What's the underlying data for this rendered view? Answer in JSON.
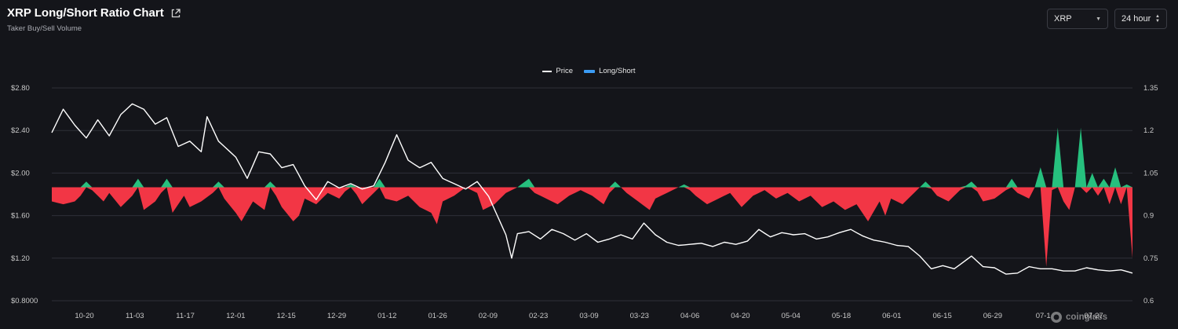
{
  "header": {
    "title": "XRP Long/Short Ratio Chart",
    "subtitle": "Taker Buy/Sell Volume",
    "coin_select": "XRP",
    "range_select": "24 hour"
  },
  "icons": {
    "external_link": "external-link-icon",
    "coin_dropdown": "chevron-down-icon",
    "range_stepper": "up-down-chevron-icon"
  },
  "watermark": "coinglass",
  "colors": {
    "background": "#14151a",
    "price_line": "#ffffff",
    "long_fill": "#26c07e",
    "short_fill": "#f23645",
    "legend_ratio": "#3b9cf4",
    "grid": "#2e3038"
  },
  "chart_data": {
    "type": "line",
    "legend": [
      {
        "name": "Price"
      },
      {
        "name": "Long/Short"
      }
    ],
    "x_tick_labels": [
      "10-20",
      "11-03",
      "11-17",
      "12-01",
      "12-15",
      "12-29",
      "01-12",
      "01-26",
      "02-09",
      "02-23",
      "03-09",
      "03-23",
      "04-06",
      "04-20",
      "05-04",
      "05-18",
      "06-01",
      "06-15",
      "06-29",
      "07-13",
      "07-27"
    ],
    "x_tick_label_visible": [
      "10-20",
      "11-03",
      "11-17",
      "12-01",
      "12-15",
      "12-29",
      "01-12",
      "01-26",
      "02-09",
      "02-23",
      "03-09",
      "03-23",
      "04-06",
      "04-20",
      "05-04",
      "05-18",
      "06-01",
      "06-15",
      "06-29",
      "07-1",
      "07-27"
    ],
    "y_left": {
      "ylim": [
        0.8,
        2.8
      ],
      "ticks": [
        "$0.8000",
        "$1.20",
        "$1.60",
        "$2.00",
        "$2.40",
        "$2.80"
      ]
    },
    "y_right": {
      "ylim": [
        0.6,
        1.35
      ],
      "ticks": [
        "0.6",
        "0.75",
        "0.9",
        "1.05",
        "1.2",
        "1.35"
      ]
    },
    "ratio_baseline": 1.0,
    "price_anchors": [
      [
        0,
        2.38
      ],
      [
        2,
        2.6
      ],
      [
        4,
        2.45
      ],
      [
        6,
        2.33
      ],
      [
        8,
        2.5
      ],
      [
        10,
        2.35
      ],
      [
        12,
        2.55
      ],
      [
        14,
        2.65
      ],
      [
        16,
        2.6
      ],
      [
        18,
        2.46
      ],
      [
        20,
        2.52
      ],
      [
        22,
        2.25
      ],
      [
        24,
        2.3
      ],
      [
        26,
        2.2
      ],
      [
        27,
        2.53
      ],
      [
        29,
        2.3
      ],
      [
        32,
        2.15
      ],
      [
        34,
        1.95
      ],
      [
        36,
        2.2
      ],
      [
        38,
        2.18
      ],
      [
        40,
        2.05
      ],
      [
        42,
        2.08
      ],
      [
        44,
        1.88
      ],
      [
        46,
        1.75
      ],
      [
        48,
        1.92
      ],
      [
        50,
        1.86
      ],
      [
        52,
        1.9
      ],
      [
        54,
        1.85
      ],
      [
        56,
        1.88
      ],
      [
        58,
        2.1
      ],
      [
        60,
        2.36
      ],
      [
        62,
        2.12
      ],
      [
        64,
        2.05
      ],
      [
        66,
        2.1
      ],
      [
        68,
        1.95
      ],
      [
        70,
        1.9
      ],
      [
        72,
        1.85
      ],
      [
        74,
        1.92
      ],
      [
        76,
        1.78
      ],
      [
        77,
        1.66
      ],
      [
        79,
        1.42
      ],
      [
        80,
        1.2
      ],
      [
        81,
        1.43
      ],
      [
        83,
        1.45
      ],
      [
        85,
        1.38
      ],
      [
        87,
        1.47
      ],
      [
        89,
        1.43
      ],
      [
        91,
        1.37
      ],
      [
        93,
        1.43
      ],
      [
        95,
        1.35
      ],
      [
        97,
        1.38
      ],
      [
        99,
        1.42
      ],
      [
        101,
        1.38
      ],
      [
        103,
        1.53
      ],
      [
        105,
        1.42
      ],
      [
        107,
        1.35
      ],
      [
        109,
        1.32
      ],
      [
        111,
        1.33
      ],
      [
        113,
        1.34
      ],
      [
        115,
        1.31
      ],
      [
        117,
        1.35
      ],
      [
        119,
        1.33
      ],
      [
        121,
        1.36
      ],
      [
        123,
        1.47
      ],
      [
        125,
        1.4
      ],
      [
        127,
        1.44
      ],
      [
        129,
        1.42
      ],
      [
        131,
        1.43
      ],
      [
        133,
        1.38
      ],
      [
        135,
        1.4
      ],
      [
        137,
        1.44
      ],
      [
        139,
        1.47
      ],
      [
        141,
        1.41
      ],
      [
        143,
        1.37
      ],
      [
        145,
        1.35
      ],
      [
        147,
        1.32
      ],
      [
        149,
        1.31
      ],
      [
        151,
        1.22
      ],
      [
        153,
        1.1
      ],
      [
        155,
        1.13
      ],
      [
        157,
        1.1
      ],
      [
        160,
        1.22
      ],
      [
        162,
        1.12
      ],
      [
        164,
        1.11
      ],
      [
        166,
        1.05
      ],
      [
        168,
        1.06
      ],
      [
        170,
        1.12
      ],
      [
        172,
        1.1
      ],
      [
        174,
        1.1
      ],
      [
        176,
        1.08
      ],
      [
        178,
        1.08
      ],
      [
        180,
        1.11
      ],
      [
        182,
        1.09
      ],
      [
        184,
        1.08
      ],
      [
        186,
        1.09
      ],
      [
        188,
        1.06
      ]
    ],
    "long_short_anchors": [
      [
        0,
        0.95
      ],
      [
        2,
        0.94
      ],
      [
        4,
        0.95
      ],
      [
        5,
        0.97
      ],
      [
        6,
        1.02
      ],
      [
        7,
        0.99
      ],
      [
        9,
        0.95
      ],
      [
        10,
        0.98
      ],
      [
        12,
        0.93
      ],
      [
        14,
        0.97
      ],
      [
        15,
        1.03
      ],
      [
        16,
        0.92
      ],
      [
        18,
        0.95
      ],
      [
        19,
        0.98
      ],
      [
        20,
        1.03
      ],
      [
        21,
        0.91
      ],
      [
        23,
        0.97
      ],
      [
        24,
        0.93
      ],
      [
        26,
        0.95
      ],
      [
        28,
        0.98
      ],
      [
        29,
        1.02
      ],
      [
        30,
        0.96
      ],
      [
        32,
        0.91
      ],
      [
        33,
        0.88
      ],
      [
        35,
        0.95
      ],
      [
        37,
        0.92
      ],
      [
        38,
        1.02
      ],
      [
        39,
        0.97
      ],
      [
        40,
        0.93
      ],
      [
        42,
        0.88
      ],
      [
        43,
        0.9
      ],
      [
        44,
        0.96
      ],
      [
        46,
        0.94
      ],
      [
        48,
        0.98
      ],
      [
        50,
        0.96
      ],
      [
        52,
        1.01
      ],
      [
        54,
        0.94
      ],
      [
        56,
        0.98
      ],
      [
        57,
        1.03
      ],
      [
        58,
        0.96
      ],
      [
        60,
        0.95
      ],
      [
        62,
        0.97
      ],
      [
        64,
        0.93
      ],
      [
        66,
        0.91
      ],
      [
        67,
        0.87
      ],
      [
        68,
        0.95
      ],
      [
        70,
        0.97
      ],
      [
        72,
        1.0
      ],
      [
        74,
        0.98
      ],
      [
        75,
        0.92
      ],
      [
        77,
        0.94
      ],
      [
        79,
        0.98
      ],
      [
        81,
        1.0
      ],
      [
        83,
        1.03
      ],
      [
        84,
        0.98
      ],
      [
        86,
        0.96
      ],
      [
        88,
        0.94
      ],
      [
        90,
        0.97
      ],
      [
        92,
        0.99
      ],
      [
        94,
        0.97
      ],
      [
        96,
        0.94
      ],
      [
        98,
        1.02
      ],
      [
        100,
        0.98
      ],
      [
        102,
        0.95
      ],
      [
        104,
        0.92
      ],
      [
        105,
        0.96
      ],
      [
        106,
        0.97
      ],
      [
        108,
        0.99
      ],
      [
        110,
        1.01
      ],
      [
        112,
        0.97
      ],
      [
        114,
        0.94
      ],
      [
        116,
        0.96
      ],
      [
        118,
        0.98
      ],
      [
        120,
        0.93
      ],
      [
        122,
        0.97
      ],
      [
        124,
        0.99
      ],
      [
        126,
        0.96
      ],
      [
        128,
        0.98
      ],
      [
        130,
        0.95
      ],
      [
        132,
        0.97
      ],
      [
        134,
        0.93
      ],
      [
        136,
        0.95
      ],
      [
        138,
        0.92
      ],
      [
        140,
        0.94
      ],
      [
        142,
        0.88
      ],
      [
        144,
        0.95
      ],
      [
        145,
        0.9
      ],
      [
        146,
        0.96
      ],
      [
        148,
        0.94
      ],
      [
        150,
        0.98
      ],
      [
        152,
        1.02
      ],
      [
        154,
        0.97
      ],
      [
        156,
        0.95
      ],
      [
        158,
        0.99
      ],
      [
        160,
        1.02
      ],
      [
        162,
        0.95
      ],
      [
        164,
        0.96
      ],
      [
        166,
        0.99
      ],
      [
        167,
        1.03
      ],
      [
        168,
        0.98
      ],
      [
        170,
        0.96
      ],
      [
        171,
        1.0
      ],
      [
        172,
        1.07
      ],
      [
        173,
        0.72
      ],
      [
        174,
        0.99
      ],
      [
        175,
        1.21
      ],
      [
        176,
        0.95
      ],
      [
        177,
        0.92
      ],
      [
        178,
        1.0
      ],
      [
        179,
        1.21
      ],
      [
        180,
        0.98
      ],
      [
        181,
        1.05
      ],
      [
        182,
        0.97
      ],
      [
        183,
        1.03
      ],
      [
        184,
        0.94
      ],
      [
        185,
        1.07
      ],
      [
        186,
        0.94
      ],
      [
        187,
        1.01
      ],
      [
        188,
        0.75
      ]
    ]
  }
}
